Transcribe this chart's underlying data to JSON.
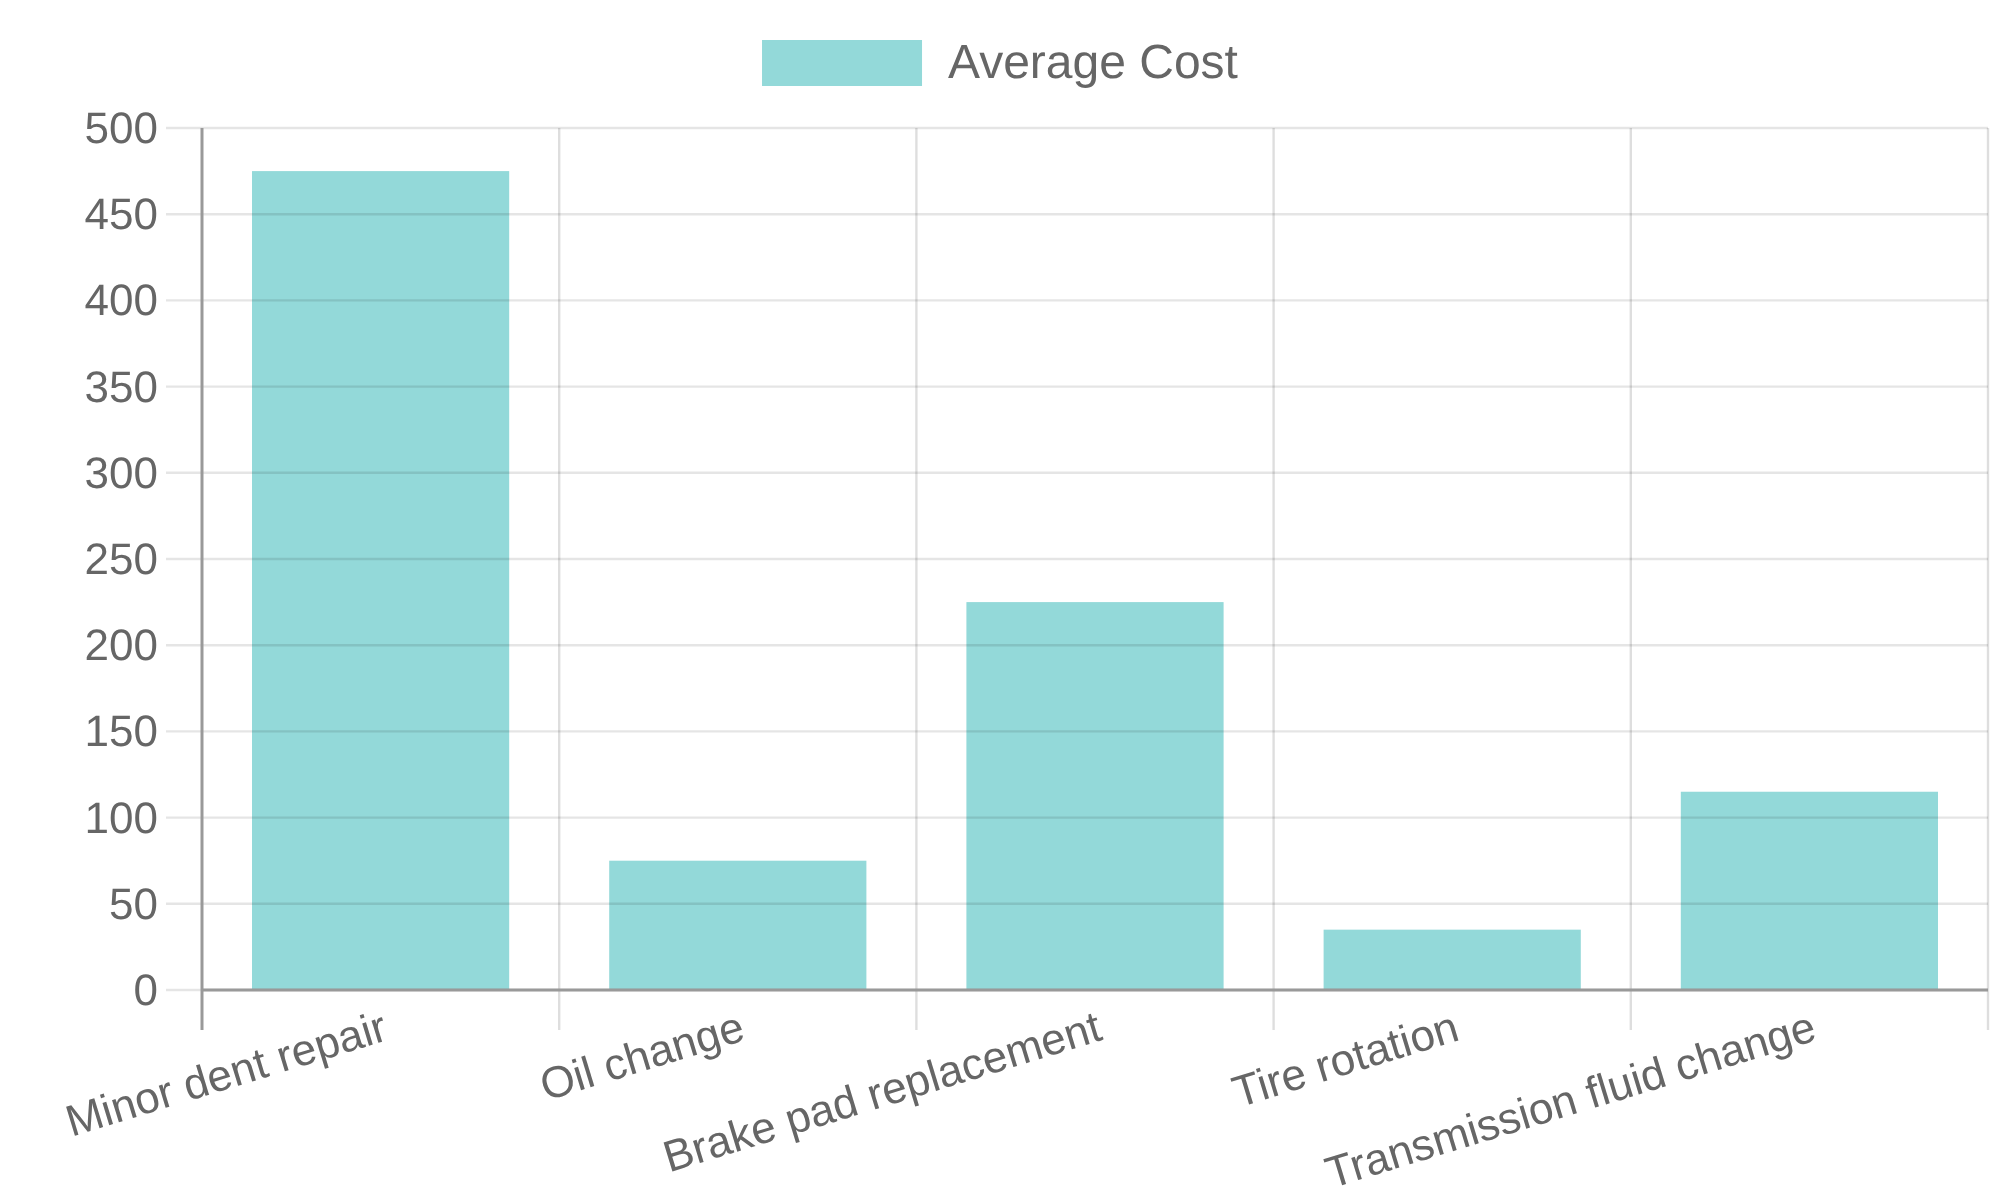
{
  "chart_data": {
    "type": "bar",
    "categories": [
      "Minor dent repair",
      "Oil change",
      "Brake pad replacement",
      "Tire rotation",
      "Transmission fluid change"
    ],
    "series": [
      {
        "name": "Average Cost",
        "color": "#93d9d9",
        "values": [
          475,
          75,
          225,
          35,
          115
        ]
      }
    ],
    "ylim": [
      0,
      500
    ],
    "yticks": [
      0,
      50,
      100,
      150,
      200,
      250,
      300,
      350,
      400,
      450,
      500
    ],
    "grid": true,
    "legend": "top"
  }
}
